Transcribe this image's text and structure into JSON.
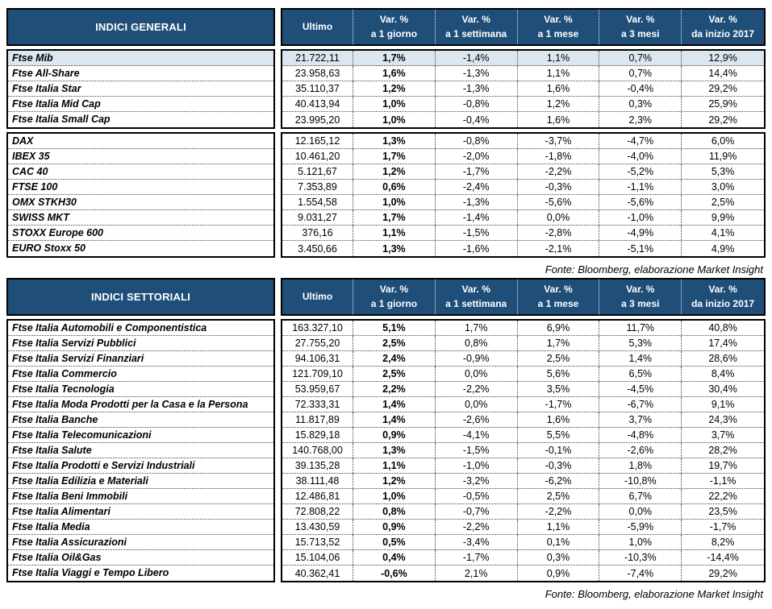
{
  "colors": {
    "header_bg": "#1f4e79",
    "highlight_row": "#dce6f1",
    "border": "#000000"
  },
  "columns": {
    "ultimo_label": "Ultimo",
    "var_label": "Var. %",
    "periods": [
      "a 1 giorno",
      "a 1 settimana",
      "a 1 mese",
      "a 3 mesi",
      "da inizio 2017"
    ]
  },
  "source_note": "Fonte: Bloomberg, elaborazione Market Insight",
  "tables": {
    "generali": {
      "title": "INDICI GENERALI",
      "groups": {
        "italy": {
          "rows": [
            {
              "name": "Ftse Mib",
              "ultimo": "21.722,11",
              "d1": "1,7%",
              "w1": "-1,4%",
              "m1": "1,1%",
              "m3": "0,7%",
              "ytd": "12,9%",
              "highlight": true
            },
            {
              "name": "Ftse All-Share",
              "ultimo": "23.958,63",
              "d1": "1,6%",
              "w1": "-1,3%",
              "m1": "1,1%",
              "m3": "0,7%",
              "ytd": "14,4%"
            },
            {
              "name": "Ftse Italia Star",
              "ultimo": "35.110,37",
              "d1": "1,2%",
              "w1": "-1,3%",
              "m1": "1,6%",
              "m3": "-0,4%",
              "ytd": "29,2%"
            },
            {
              "name": "Ftse Italia Mid Cap",
              "ultimo": "40.413,94",
              "d1": "1,0%",
              "w1": "-0,8%",
              "m1": "1,2%",
              "m3": "0,3%",
              "ytd": "25,9%"
            },
            {
              "name": "Ftse Italia Small Cap",
              "ultimo": "23.995,20",
              "d1": "1,0%",
              "w1": "-0,4%",
              "m1": "1,6%",
              "m3": "2,3%",
              "ytd": "29,2%"
            }
          ]
        },
        "international": {
          "rows": [
            {
              "name": "DAX",
              "ultimo": "12.165,12",
              "d1": "1,3%",
              "w1": "-0,8%",
              "m1": "-3,7%",
              "m3": "-4,7%",
              "ytd": "6,0%"
            },
            {
              "name": "IBEX 35",
              "ultimo": "10.461,20",
              "d1": "1,7%",
              "w1": "-2,0%",
              "m1": "-1,8%",
              "m3": "-4,0%",
              "ytd": "11,9%"
            },
            {
              "name": "CAC 40",
              "ultimo": "5.121,67",
              "d1": "1,2%",
              "w1": "-1,7%",
              "m1": "-2,2%",
              "m3": "-5,2%",
              "ytd": "5,3%"
            },
            {
              "name": "FTSE 100",
              "ultimo": "7.353,89",
              "d1": "0,6%",
              "w1": "-2,4%",
              "m1": "-0,3%",
              "m3": "-1,1%",
              "ytd": "3,0%"
            },
            {
              "name": "OMX STKH30",
              "ultimo": "1.554,58",
              "d1": "1,0%",
              "w1": "-1,3%",
              "m1": "-5,6%",
              "m3": "-5,6%",
              "ytd": "2,5%"
            },
            {
              "name": "SWISS MKT",
              "ultimo": "9.031,27",
              "d1": "1,7%",
              "w1": "-1,4%",
              "m1": "0,0%",
              "m3": "-1,0%",
              "ytd": "9,9%"
            },
            {
              "name": "STOXX Europe 600",
              "ultimo": "376,16",
              "d1": "1,1%",
              "w1": "-1,5%",
              "m1": "-2,8%",
              "m3": "-4,9%",
              "ytd": "4,1%"
            },
            {
              "name": "EURO Stoxx 50",
              "ultimo": "3.450,66",
              "d1": "1,3%",
              "w1": "-1,6%",
              "m1": "-2,1%",
              "m3": "-5,1%",
              "ytd": "4,9%"
            }
          ]
        }
      }
    },
    "settoriali": {
      "title": "INDICI SETTORIALI",
      "groups": {
        "sectors": {
          "rows": [
            {
              "name": "Ftse Italia Automobili e Componentistica",
              "ultimo": "163.327,10",
              "d1": "5,1%",
              "w1": "1,7%",
              "m1": "6,9%",
              "m3": "11,7%",
              "ytd": "40,8%"
            },
            {
              "name": "Ftse Italia Servizi Pubblici",
              "ultimo": "27.755,20",
              "d1": "2,5%",
              "w1": "0,8%",
              "m1": "1,7%",
              "m3": "5,3%",
              "ytd": "17,4%"
            },
            {
              "name": "Ftse Italia Servizi Finanziari",
              "ultimo": "94.106,31",
              "d1": "2,4%",
              "w1": "-0,9%",
              "m1": "2,5%",
              "m3": "1,4%",
              "ytd": "28,6%"
            },
            {
              "name": "Ftse Italia Commercio",
              "ultimo": "121.709,10",
              "d1": "2,5%",
              "w1": "0,0%",
              "m1": "5,6%",
              "m3": "6,5%",
              "ytd": "8,4%"
            },
            {
              "name": "Ftse Italia Tecnologia",
              "ultimo": "53.959,67",
              "d1": "2,2%",
              "w1": "-2,2%",
              "m1": "3,5%",
              "m3": "-4,5%",
              "ytd": "30,4%"
            },
            {
              "name": "Ftse Italia Moda Prodotti per la Casa e la Persona",
              "ultimo": "72.333,31",
              "d1": "1,4%",
              "w1": "0,0%",
              "m1": "-1,7%",
              "m3": "-6,7%",
              "ytd": "9,1%"
            },
            {
              "name": "Ftse Italia Banche",
              "ultimo": "11.817,89",
              "d1": "1,4%",
              "w1": "-2,6%",
              "m1": "1,6%",
              "m3": "3,7%",
              "ytd": "24,3%"
            },
            {
              "name": "Ftse Italia Telecomunicazioni",
              "ultimo": "15.829,18",
              "d1": "0,9%",
              "w1": "-4,1%",
              "m1": "5,5%",
              "m3": "-4,8%",
              "ytd": "3,7%"
            },
            {
              "name": "Ftse Italia Salute",
              "ultimo": "140.768,00",
              "d1": "1,3%",
              "w1": "-1,5%",
              "m1": "-0,1%",
              "m3": "-2,6%",
              "ytd": "28,2%"
            },
            {
              "name": "Ftse Italia Prodotti e Servizi Industriali",
              "ultimo": "39.135,28",
              "d1": "1,1%",
              "w1": "-1,0%",
              "m1": "-0,3%",
              "m3": "1,8%",
              "ytd": "19,7%"
            },
            {
              "name": "Ftse Italia Edilizia e Materiali",
              "ultimo": "38.111,48",
              "d1": "1,2%",
              "w1": "-3,2%",
              "m1": "-6,2%",
              "m3": "-10,8%",
              "ytd": "-1,1%"
            },
            {
              "name": "Ftse Italia Beni Immobili",
              "ultimo": "12.486,81",
              "d1": "1,0%",
              "w1": "-0,5%",
              "m1": "2,5%",
              "m3": "6,7%",
              "ytd": "22,2%"
            },
            {
              "name": "Ftse Italia Alimentari",
              "ultimo": "72.808,22",
              "d1": "0,8%",
              "w1": "-0,7%",
              "m1": "-2,2%",
              "m3": "0,0%",
              "ytd": "23,5%"
            },
            {
              "name": "Ftse Italia Media",
              "ultimo": "13.430,59",
              "d1": "0,9%",
              "w1": "-2,2%",
              "m1": "1,1%",
              "m3": "-5,9%",
              "ytd": "-1,7%"
            },
            {
              "name": "Ftse Italia Assicurazioni",
              "ultimo": "15.713,52",
              "d1": "0,5%",
              "w1": "-3,4%",
              "m1": "0,1%",
              "m3": "1,0%",
              "ytd": "8,2%"
            },
            {
              "name": "Ftse Italia Oil&Gas",
              "ultimo": "15.104,06",
              "d1": "0,4%",
              "w1": "-1,7%",
              "m1": "0,3%",
              "m3": "-10,3%",
              "ytd": "-14,4%"
            },
            {
              "name": "Ftse Italia Viaggi e Tempo Libero",
              "ultimo": "40.362,41",
              "d1": "-0,6%",
              "w1": "2,1%",
              "m1": "0,9%",
              "m3": "-7,4%",
              "ytd": "29,2%"
            }
          ]
        }
      }
    }
  }
}
